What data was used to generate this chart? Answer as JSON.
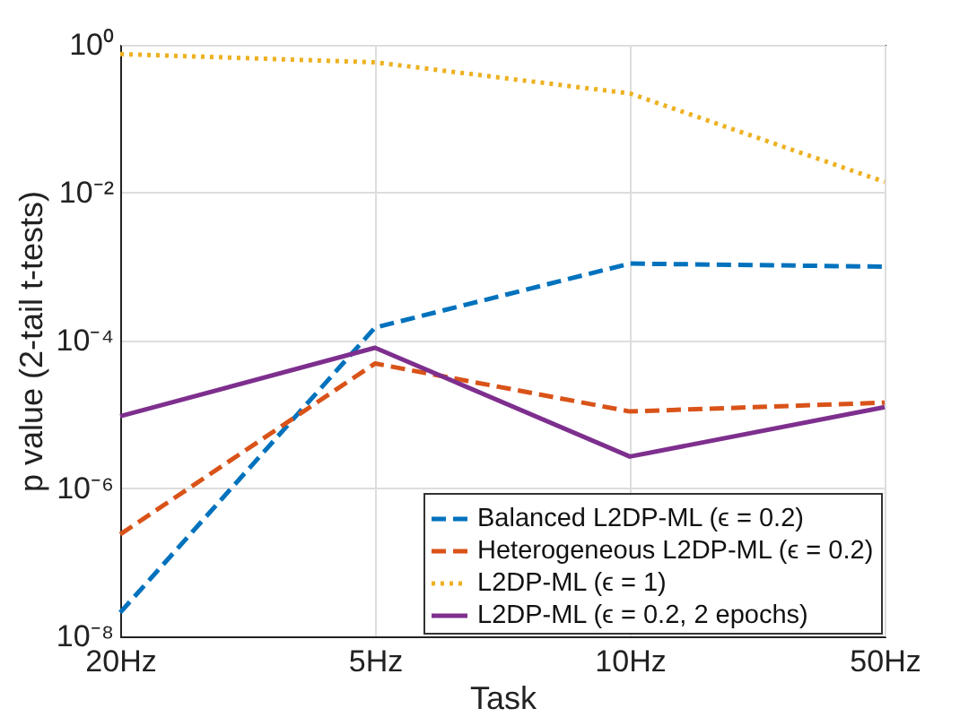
{
  "chart_data": {
    "type": "line",
    "xlabel": "Task",
    "ylabel": "p value (2-tail t-tests)",
    "categories": [
      "20Hz",
      "5Hz",
      "10Hz",
      "50Hz"
    ],
    "series": [
      {
        "name": "Balanced L2DP-ML (ϵ = 0.2)",
        "color": "#0072bd",
        "line_style": "dashed",
        "values": [
          2.1e-08,
          0.00015,
          0.0011,
          0.001
        ]
      },
      {
        "name": "Heterogeneous L2DP-ML (ϵ = 0.2)",
        "color": "#d95319",
        "line_style": "dashed",
        "values": [
          2.4e-07,
          4.9e-05,
          1.1e-05,
          1.45e-05
        ]
      },
      {
        "name": "L2DP-ML (ϵ = 1)",
        "color": "#edb120",
        "line_style": "dotted",
        "values": [
          0.75,
          0.58,
          0.22,
          0.014
        ]
      },
      {
        "name": "L2DP-ML (ϵ = 0.2, 2 epochs)",
        "color": "#7e2f8e",
        "line_style": "solid",
        "values": [
          9.5e-06,
          8e-05,
          2.7e-06,
          1.26e-05
        ]
      }
    ],
    "log": true,
    "ylim": [
      1e-08,
      1
    ],
    "yticks": [
      {
        "value": 1e-08,
        "label": "10⁻⁸"
      },
      {
        "value": 1e-06,
        "label": "10⁻⁶"
      },
      {
        "value": 0.0001,
        "label": "10⁻⁴"
      },
      {
        "value": 0.01,
        "label": "10⁻²"
      },
      {
        "value": 1,
        "label": "10⁰"
      }
    ],
    "grid": true,
    "legend": "bottom right",
    "marker": "none"
  }
}
